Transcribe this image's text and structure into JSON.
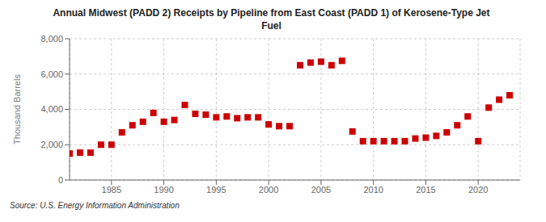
{
  "chart_data": {
    "type": "scatter",
    "title": "Annual Midwest (PADD 2) Receipts by Pipeline from East Coast (PADD 1) of Kerosene-Type Jet\nFuel",
    "ylabel": "Thousand Barrels",
    "source": "Source: U.S. Energy Information Administration",
    "color": "#cc0000",
    "marker": "square",
    "grid": true,
    "xlim": [
      1981,
      2024
    ],
    "xticks": [
      1985,
      1990,
      1995,
      2000,
      2005,
      2010,
      2015,
      2020
    ],
    "ylim": [
      0,
      8000
    ],
    "yticks": [
      0,
      {
        "value": 2000,
        "label": "2,000"
      },
      {
        "value": 4000,
        "label": "4,000"
      },
      {
        "value": 6000,
        "label": "6,000"
      },
      {
        "value": 8000,
        "label": "8,000"
      }
    ],
    "x": [
      1981,
      1982,
      1983,
      1984,
      1985,
      1986,
      1987,
      1988,
      1989,
      1990,
      1991,
      1992,
      1993,
      1994,
      1995,
      1996,
      1997,
      1998,
      1999,
      2000,
      2001,
      2002,
      2003,
      2004,
      2005,
      2006,
      2007,
      2008,
      2009,
      2010,
      2011,
      2012,
      2013,
      2014,
      2015,
      2016,
      2017,
      2018,
      2019,
      2020,
      2021,
      2022,
      2023
    ],
    "values": [
      1500,
      1550,
      1550,
      2000,
      2000,
      2700,
      3100,
      3300,
      3800,
      3300,
      3400,
      4250,
      3750,
      3700,
      3550,
      3600,
      3500,
      3550,
      3550,
      3150,
      3050,
      3050,
      6500,
      6650,
      6700,
      6500,
      6750,
      2750,
      2200,
      2200,
      2200,
      2200,
      2200,
      2350,
      2400,
      2500,
      2700,
      3100,
      3600,
      2200,
      4100,
      4550,
      4800
    ]
  }
}
